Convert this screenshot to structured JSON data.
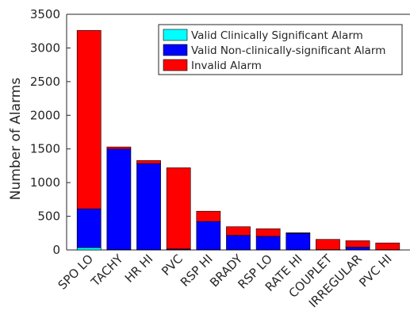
{
  "chart_data": {
    "type": "bar",
    "stacked": true,
    "ylabel": "Number of Alarms",
    "xlabel": "",
    "title": "",
    "ylim": [
      0,
      3500
    ],
    "yticks": [
      0,
      500,
      1000,
      1500,
      2000,
      2500,
      3000,
      3500
    ],
    "grid": false,
    "legend_position": "top-right",
    "categories": [
      "SPO LO",
      "TACHY",
      "HR HI",
      "PVC",
      "RSP HI",
      "BRADY",
      "RSP LO",
      "RATE HI",
      "COUPLET",
      "IRREGULAR",
      "PVC HI"
    ],
    "series": [
      {
        "name": "Valid Clinically Significant Alarm",
        "color": "#00ffff",
        "values": [
          35,
          5,
          3,
          5,
          3,
          2,
          2,
          2,
          2,
          2,
          2
        ]
      },
      {
        "name": "Valid Non-clinically-significant Alarm",
        "color": "#0000ff",
        "values": [
          575,
          1495,
          1280,
          10,
          420,
          215,
          200,
          245,
          2,
          40,
          2
        ]
      },
      {
        "name": "Invalid Alarm",
        "color": "#ff0000",
        "values": [
          2650,
          30,
          45,
          1205,
          152,
          128,
          113,
          8,
          153,
          95,
          100
        ]
      }
    ]
  }
}
